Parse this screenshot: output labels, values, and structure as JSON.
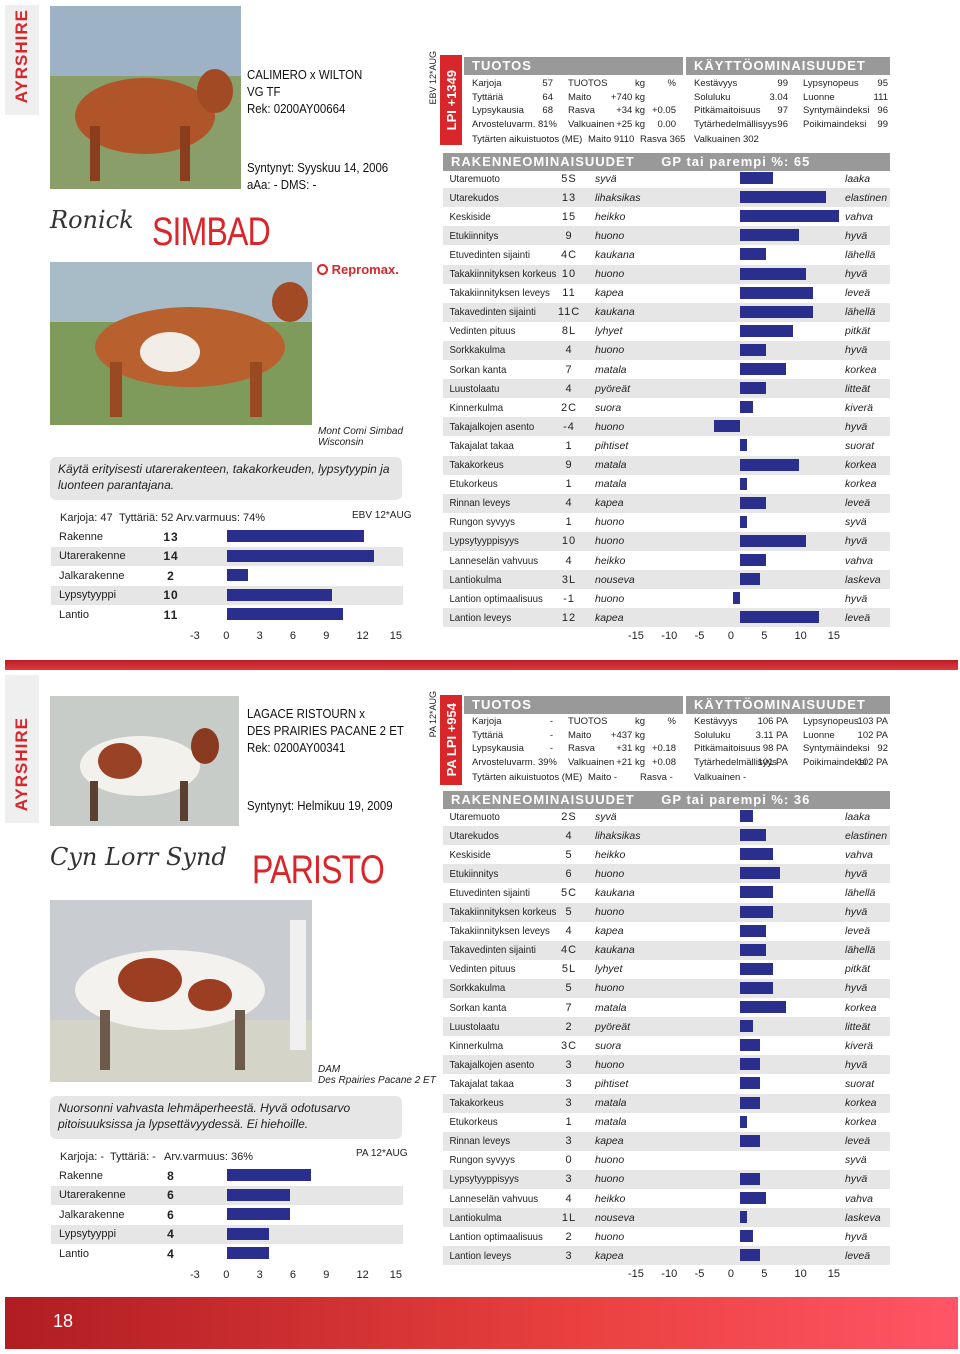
{
  "page_number": "18",
  "bull1": {
    "breed": "AYRSHIRE",
    "pedigree": [
      "CALIMERO x WILTON",
      "VG TF",
      "Rek: 0200AY00664"
    ],
    "born": "Syntynyt: Syyskuu 14, 2006",
    "aaa": "aAa: -     DMS: -",
    "prefix": "Ronick",
    "name": "SIMBAD",
    "logo": "Repromax.",
    "dam_label": "Mont Comi Simbad",
    "dam_line2": "Wisconsin",
    "note": "Käytä erityisesti utarerakenteen, takakorkeuden, lypsytyypin ja luonteen parantajana.",
    "stats": {
      "karjoja": "Karjoja: 47",
      "tyttaria": "Tyttäriä: 52",
      "arv": "Arv.varmuus: 74%"
    },
    "ebv_label": "EBV 12*AUG",
    "traits": [
      {
        "label": "Rakenne",
        "value": "13",
        "num": 13
      },
      {
        "label": "Utarerakenne",
        "value": "14",
        "num": 14
      },
      {
        "label": "Jalkarakenne",
        "value": "2",
        "num": 2
      },
      {
        "label": "Lypsytyyppi",
        "value": "10",
        "num": 10
      },
      {
        "label": "Lantio",
        "value": "11",
        "num": 11
      }
    ],
    "axis": [
      "-3",
      "0",
      "3",
      "6",
      "9",
      "12",
      "15"
    ],
    "lpi": "LPI +1349",
    "lpi_side": "EBV 12*AUG",
    "tuotos_title": "TUOTOS",
    "kaytto_title": "KÄYTTÖOMINAISUUDET",
    "tuotos": {
      "col1": [
        "Karjoja",
        "Tyttäriä",
        "Lypsykausia",
        "Arvosteluvarm.  81%"
      ],
      "col1v": [
        "57",
        "64",
        "68",
        ""
      ],
      "col2": [
        "TUOTOS",
        "Maito",
        "Rasva",
        "Valkuainen"
      ],
      "col2kg": [
        "kg",
        "+740 kg",
        "+34 kg",
        "+25 kg"
      ],
      "col2p": [
        "%",
        "",
        "+0.05",
        "0.00"
      ],
      "daughters": "Tytärten aikuistuotos (ME)",
      "d_maito": "Maito 9110",
      "d_rasva": "Rasva 365"
    },
    "kaytto": {
      "col1": [
        "Kestävyys",
        "Soluluku",
        "Pitkämaitoisuus",
        "Tytärhedelmällisyys"
      ],
      "col1v": [
        "99",
        "3.04",
        "97",
        "96"
      ],
      "col2": [
        "Lypsynopeus",
        "Luonne",
        "Syntymäindeksi",
        "Poikimaindeksi"
      ],
      "col2v": [
        "95",
        "111",
        "96",
        "99"
      ],
      "valk": "Valkuainen 302"
    },
    "rak_title": "RAKENNEOMINAISUUDET",
    "gp": "GP tai parempi %: 65",
    "rak": [
      {
        "label": "Utaremuoto",
        "value": "5S",
        "neg": "syvä",
        "pos": "laaka",
        "num": 5
      },
      {
        "label": "Utarekudos",
        "value": "13",
        "neg": "lihaksikas",
        "pos": "elastinen",
        "num": 13
      },
      {
        "label": "Keskiside",
        "value": "15",
        "neg": "heikko",
        "pos": "vahva",
        "num": 15
      },
      {
        "label": "Etukiinnitys",
        "value": "9",
        "neg": "huono",
        "pos": "hyvä",
        "num": 9
      },
      {
        "label": "Etuvedinten sijainti",
        "value": "4C",
        "neg": "kaukana",
        "pos": "lähellä",
        "num": 4
      },
      {
        "label": "Takakiinnityksen korkeus",
        "value": "10",
        "neg": "huono",
        "pos": "hyvä",
        "num": 10
      },
      {
        "label": "Takakiinnityksen leveys",
        "value": "11",
        "neg": "kapea",
        "pos": "leveä",
        "num": 11
      },
      {
        "label": "Takavedinten sijainti",
        "value": "11C",
        "neg": "kaukana",
        "pos": "lähellä",
        "num": 11
      },
      {
        "label": "Vedinten pituus",
        "value": "8L",
        "neg": "lyhyet",
        "pos": "pitkät",
        "num": 8
      },
      {
        "label": "Sorkkakulma",
        "value": "4",
        "neg": "huono",
        "pos": "hyvä",
        "num": 4
      },
      {
        "label": "Sorkan kanta",
        "value": "7",
        "neg": "matala",
        "pos": "korkea",
        "num": 7
      },
      {
        "label": "Luustolaatu",
        "value": "4",
        "neg": "pyöreät",
        "pos": "litteät",
        "num": 4
      },
      {
        "label": "Kinnerkulma",
        "value": "2C",
        "neg": "suora",
        "pos": "kiverä",
        "num": 2
      },
      {
        "label": "Takajalkojen asento",
        "value": "-4",
        "neg": "huono",
        "pos": "hyvä",
        "num": -4
      },
      {
        "label": "Takajalat takaa",
        "value": "1",
        "neg": "pihtiset",
        "pos": "suorat",
        "num": 1
      },
      {
        "label": "Takakorkeus",
        "value": "9",
        "neg": "matala",
        "pos": "korkea",
        "num": 9
      },
      {
        "label": "Etukorkeus",
        "value": "1",
        "neg": "matala",
        "pos": "korkea",
        "num": 1
      },
      {
        "label": "Rinnan leveys",
        "value": "4",
        "neg": "kapea",
        "pos": "leveä",
        "num": 4
      },
      {
        "label": "Rungon syvyys",
        "value": "1",
        "neg": "huono",
        "pos": "syvä",
        "num": 1
      },
      {
        "label": "Lypsytyyppisyys",
        "value": "10",
        "neg": "huono",
        "pos": "hyvä",
        "num": 10
      },
      {
        "label": "Lanneselän vahvuus",
        "value": "4",
        "neg": "heikko",
        "pos": "vahva",
        "num": 4
      },
      {
        "label": "Lantiokulma",
        "value": "3L",
        "neg": "nouseva",
        "pos": "laskeva",
        "num": 3
      },
      {
        "label": "Lantion optimaalisuus",
        "value": "-1",
        "neg": "huono",
        "pos": "hyvä",
        "num": -1
      },
      {
        "label": "Lantion leveys",
        "value": "12",
        "neg": "kapea",
        "pos": "leveä",
        "num": 12
      }
    ],
    "rak_axis": [
      "-15",
      "-10",
      "-5",
      "0",
      "5",
      "10",
      "15"
    ]
  },
  "bull2": {
    "breed": "AYRSHIRE",
    "pedigree": [
      "LAGACE RISTOURN x",
      "DES PRAIRIES PACANE 2 ET",
      "Rek: 0200AY00341"
    ],
    "born": "Syntynyt: Helmikuu 19, 2009",
    "prefix": "Cyn Lorr Synd",
    "name": "PARISTO",
    "dam_label": "DAM",
    "dam_line2": "Des Rpairies Pacane 2 ET",
    "note": "Nuorsonni vahvasta lehmäperheestä. Hyvä odotusarvo pitoisuuksissa ja lypsettävyydessä. Ei hiehoille.",
    "stats": {
      "karjoja": "Karjoja: -",
      "tyttaria": "Tyttäriä: -",
      "arv": "Arv.varmuus: 36%"
    },
    "ebv_label": "PA 12*AUG",
    "traits": [
      {
        "label": "Rakenne",
        "value": "8",
        "num": 8
      },
      {
        "label": "Utarerakenne",
        "value": "6",
        "num": 6
      },
      {
        "label": "Jalkarakenne",
        "value": "6",
        "num": 6
      },
      {
        "label": "Lypsytyyppi",
        "value": "4",
        "num": 4
      },
      {
        "label": "Lantio",
        "value": "4",
        "num": 4
      }
    ],
    "axis": [
      "-3",
      "0",
      "3",
      "6",
      "9",
      "12",
      "15"
    ],
    "lpi": "PA LPI +954",
    "lpi_side": "PA 12*AUG",
    "tuotos_title": "TUOTOS",
    "kaytto_title": "KÄYTTÖOMINAISUUDET",
    "tuotos": {
      "col1": [
        "Karjoja",
        "Tyttäriä",
        "Lypsykausia",
        "Arvosteluvarm.  39%"
      ],
      "col1v": [
        "-",
        "-",
        "-",
        ""
      ],
      "col2": [
        "TUOTOS",
        "Maito",
        "Rasva",
        "Valkuainen"
      ],
      "col2kg": [
        "kg",
        "+437 kg",
        "+31 kg",
        "+21 kg"
      ],
      "col2p": [
        "%",
        "",
        "+0.18",
        "+0.08"
      ],
      "daughters": "Tytärten aikuistuotos (ME)",
      "d_maito": "Maito -",
      "d_rasva": "Rasva -"
    },
    "kaytto": {
      "col1": [
        "Kestävyys",
        "Soluluku",
        "Pitkämaitoisuus",
        "Tytärhedelmällisyys"
      ],
      "col1v": [
        "106 PA",
        "3.11 PA",
        "98 PA",
        "101 PA"
      ],
      "col2": [
        "Lypsynopeus",
        "Luonne",
        "Syntymäindeksi",
        "Poikimaindeksi"
      ],
      "col2v": [
        "103 PA",
        "102 PA",
        "92",
        "102 PA"
      ],
      "valk": "Valkuainen -"
    },
    "rak_title": "RAKENNEOMINAISUUDET",
    "gp": "GP tai parempi %: 36",
    "rak": [
      {
        "label": "Utaremuoto",
        "value": "2S",
        "neg": "syvä",
        "pos": "laaka",
        "num": 2
      },
      {
        "label": "Utarekudos",
        "value": "4",
        "neg": "lihaksikas",
        "pos": "elastinen",
        "num": 4
      },
      {
        "label": "Keskiside",
        "value": "5",
        "neg": "heikko",
        "pos": "vahva",
        "num": 5
      },
      {
        "label": "Etukiinnitys",
        "value": "6",
        "neg": "huono",
        "pos": "hyvä",
        "num": 6
      },
      {
        "label": "Etuvedinten sijainti",
        "value": "5C",
        "neg": "kaukana",
        "pos": "lähellä",
        "num": 5
      },
      {
        "label": "Takakiinnityksen korkeus",
        "value": "5",
        "neg": "huono",
        "pos": "hyvä",
        "num": 5
      },
      {
        "label": "Takakiinnityksen leveys",
        "value": "4",
        "neg": "kapea",
        "pos": "leveä",
        "num": 4
      },
      {
        "label": "Takavedinten sijainti",
        "value": "4C",
        "neg": "kaukana",
        "pos": "lähellä",
        "num": 4
      },
      {
        "label": "Vedinten pituus",
        "value": "5L",
        "neg": "lyhyet",
        "pos": "pitkät",
        "num": 5
      },
      {
        "label": "Sorkkakulma",
        "value": "5",
        "neg": "huono",
        "pos": "hyvä",
        "num": 5
      },
      {
        "label": "Sorkan kanta",
        "value": "7",
        "neg": "matala",
        "pos": "korkea",
        "num": 7
      },
      {
        "label": "Luustolaatu",
        "value": "2",
        "neg": "pyöreät",
        "pos": "litteät",
        "num": 2
      },
      {
        "label": "Kinnerkulma",
        "value": "3C",
        "neg": "suora",
        "pos": "kiverä",
        "num": 3
      },
      {
        "label": "Takajalkojen asento",
        "value": "3",
        "neg": "huono",
        "pos": "hyvä",
        "num": 3
      },
      {
        "label": "Takajalat takaa",
        "value": "3",
        "neg": "pihtiset",
        "pos": "suorat",
        "num": 3
      },
      {
        "label": "Takakorkeus",
        "value": "3",
        "neg": "matala",
        "pos": "korkea",
        "num": 3
      },
      {
        "label": "Etukorkeus",
        "value": "1",
        "neg": "matala",
        "pos": "korkea",
        "num": 1
      },
      {
        "label": "Rinnan leveys",
        "value": "3",
        "neg": "kapea",
        "pos": "leveä",
        "num": 3
      },
      {
        "label": "Rungon syvyys",
        "value": "0",
        "neg": "huono",
        "pos": "syvä",
        "num": 0
      },
      {
        "label": "Lypsytyyppisyys",
        "value": "3",
        "neg": "huono",
        "pos": "hyvä",
        "num": 3
      },
      {
        "label": "Lanneselän vahvuus",
        "value": "4",
        "neg": "heikko",
        "pos": "vahva",
        "num": 4
      },
      {
        "label": "Lantiokulma",
        "value": "1L",
        "neg": "nouseva",
        "pos": "laskeva",
        "num": 1
      },
      {
        "label": "Lantion optimaalisuus",
        "value": "2",
        "neg": "huono",
        "pos": "hyvä",
        "num": 2
      },
      {
        "label": "Lantion leveys",
        "value": "3",
        "neg": "kapea",
        "pos": "leveä",
        "num": 3
      }
    ],
    "rak_axis": [
      "-15",
      "-10",
      "-5",
      "0",
      "5",
      "10",
      "15"
    ]
  }
}
